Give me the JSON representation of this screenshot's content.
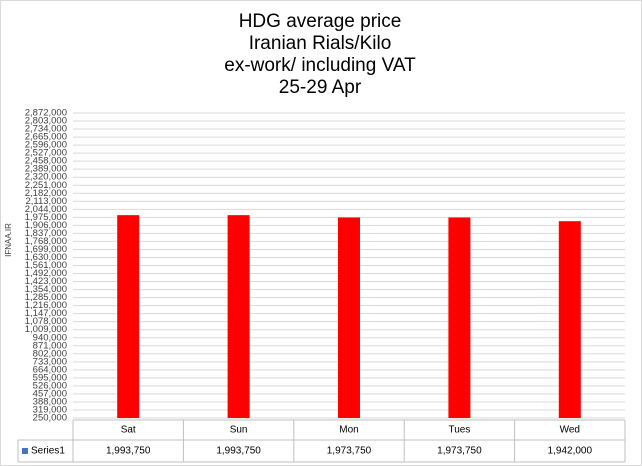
{
  "chart_data": {
    "type": "bar",
    "title": [
      "HDG average price",
      "Iranian Rials/Kilo",
      "ex-work/ including VAT",
      "25-29 Apr"
    ],
    "watermark": "IFNAA.IR",
    "categories": [
      "Sat",
      "Sun",
      "Mon",
      "Tues",
      "Wed"
    ],
    "series": [
      {
        "name": "Series1",
        "color": "#ff0000",
        "legend_color": "#4472c4",
        "values": [
          1993750,
          1993750,
          1973750,
          1973750,
          1942000
        ],
        "value_labels": [
          "1,993,750",
          "1,993,750",
          "1,973,750",
          "1,973,750",
          "1,942,000"
        ]
      }
    ],
    "ylim": [
      250000,
      2872000
    ],
    "yticks": [
      {
        "value": 250000,
        "label": "250,000"
      },
      {
        "value": 319000,
        "label": "319,000"
      },
      {
        "value": 388000,
        "label": "388,000"
      },
      {
        "value": 457000,
        "label": "457,000"
      },
      {
        "value": 526000,
        "label": "526,000"
      },
      {
        "value": 595000,
        "label": "595,000"
      },
      {
        "value": 664000,
        "label": "664,000"
      },
      {
        "value": 733000,
        "label": "733,000"
      },
      {
        "value": 802000,
        "label": "802,000"
      },
      {
        "value": 871000,
        "label": "871,000"
      },
      {
        "value": 940000,
        "label": "940,000"
      },
      {
        "value": 1009000,
        "label": "1,009,000"
      },
      {
        "value": 1078000,
        "label": "1,078,000"
      },
      {
        "value": 1147000,
        "label": "1,147,000"
      },
      {
        "value": 1216000,
        "label": "1,216,000"
      },
      {
        "value": 1285000,
        "label": "1,285,000"
      },
      {
        "value": 1354000,
        "label": "1,354,000"
      },
      {
        "value": 1423000,
        "label": "1,423,000"
      },
      {
        "value": 1492000,
        "label": "1,492,000"
      },
      {
        "value": 1561000,
        "label": "1,561,000"
      },
      {
        "value": 1630000,
        "label": "1,630,000"
      },
      {
        "value": 1699000,
        "label": "1,699,000"
      },
      {
        "value": 1768000,
        "label": "1,768,000"
      },
      {
        "value": 1837000,
        "label": "1,837,000"
      },
      {
        "value": 1906000,
        "label": "1,906,000"
      },
      {
        "value": 1975000,
        "label": "1,975,000"
      },
      {
        "value": 2044000,
        "label": "2,044,000"
      },
      {
        "value": 2113000,
        "label": "2,113,000"
      },
      {
        "value": 2182000,
        "label": "2,182,000"
      },
      {
        "value": 2251000,
        "label": "2,251,000"
      },
      {
        "value": 2320000,
        "label": "2,320,000"
      },
      {
        "value": 2389000,
        "label": "2,389,000"
      },
      {
        "value": 2458000,
        "label": "2,458,000"
      },
      {
        "value": 2527000,
        "label": "2,527,000"
      },
      {
        "value": 2596000,
        "label": "2,596,000"
      },
      {
        "value": 2665000,
        "label": "2,665,000"
      },
      {
        "value": 2734000,
        "label": "2,734,000"
      },
      {
        "value": 2803000,
        "label": "2,803,000"
      },
      {
        "value": 2872000,
        "label": "2,872,000"
      }
    ],
    "grid": true
  }
}
